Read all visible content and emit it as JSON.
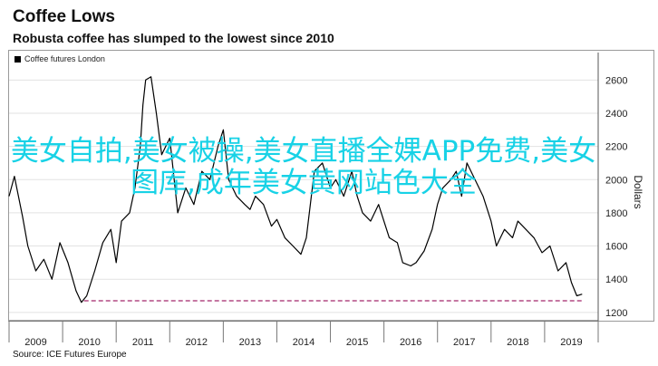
{
  "title": "Coffee Lows",
  "subtitle": "Robusta coffee has slumped to the lowest since 2010",
  "legend_label": "Coffee futures London",
  "source": "Source: ICE Futures Europe",
  "watermark_text": "美女自拍,美女被操,美女直播全婐APP免费,美女图库,成年美女黄网站色大全",
  "colors": {
    "series": "#000000",
    "reference_line": "#b24a84",
    "watermark": "#18d2e6"
  },
  "chart_data": {
    "type": "line",
    "title": "Coffee Lows",
    "subtitle": "Robusta coffee has slumped to the lowest since 2010",
    "ylabel": "Dollars",
    "ylim": [
      1150,
      2700
    ],
    "xlim": [
      2008.5,
      2019.5
    ],
    "yticks": [
      1200,
      1400,
      1600,
      1800,
      2000,
      2200,
      2400,
      2600
    ],
    "xticks": [
      "2009",
      "2010",
      "2011",
      "2012",
      "2013",
      "2014",
      "2015",
      "2016",
      "2017",
      "2018",
      "2019"
    ],
    "reference_line": {
      "y": 1270,
      "from": 2009.9,
      "to": 2019.2,
      "style": "dashed"
    },
    "series": [
      {
        "name": "Coffee futures London",
        "x": [
          2008.5,
          2008.6,
          2008.75,
          2008.85,
          2009.0,
          2009.15,
          2009.3,
          2009.45,
          2009.6,
          2009.75,
          2009.85,
          2009.95,
          2010.1,
          2010.25,
          2010.4,
          2010.5,
          2010.6,
          2010.75,
          2010.85,
          2010.95,
          2011.0,
          2011.05,
          2011.15,
          2011.25,
          2011.35,
          2011.5,
          2011.65,
          2011.8,
          2011.95,
          2012.1,
          2012.25,
          2012.4,
          2012.5,
          2012.6,
          2012.75,
          2012.9,
          2013.0,
          2013.1,
          2013.25,
          2013.4,
          2013.5,
          2013.65,
          2013.8,
          2013.95,
          2014.05,
          2014.2,
          2014.35,
          2014.5,
          2014.6,
          2014.75,
          2014.9,
          2015.0,
          2015.1,
          2015.25,
          2015.4,
          2015.5,
          2015.6,
          2015.75,
          2015.85,
          2016.0,
          2016.1,
          2016.25,
          2016.4,
          2016.5,
          2016.6,
          2016.75,
          2016.85,
          2016.95,
          2017.05,
          2017.2,
          2017.35,
          2017.5,
          2017.6,
          2017.75,
          2017.9,
          2018.0,
          2018.15,
          2018.3,
          2018.45,
          2018.6,
          2018.75,
          2018.9,
          2019.0,
          2019.1,
          2019.2
        ],
        "values": [
          1900,
          2020,
          1780,
          1600,
          1450,
          1520,
          1400,
          1620,
          1500,
          1330,
          1260,
          1300,
          1450,
          1620,
          1700,
          1500,
          1750,
          1800,
          1950,
          2200,
          2450,
          2600,
          2620,
          2400,
          2150,
          2250,
          1800,
          1950,
          1850,
          2050,
          2000,
          2200,
          2300,
          2000,
          1900,
          1850,
          1820,
          1900,
          1850,
          1720,
          1760,
          1650,
          1600,
          1550,
          1650,
          2050,
          2100,
          1950,
          2000,
          1900,
          2050,
          1900,
          1800,
          1750,
          1850,
          1750,
          1650,
          1620,
          1500,
          1480,
          1500,
          1570,
          1700,
          1850,
          1950,
          2000,
          2050,
          1900,
          2100,
          2000,
          1900,
          1750,
          1600,
          1700,
          1650,
          1750,
          1700,
          1650,
          1560,
          1600,
          1450,
          1500,
          1380,
          1300,
          1310
        ]
      }
    ]
  }
}
